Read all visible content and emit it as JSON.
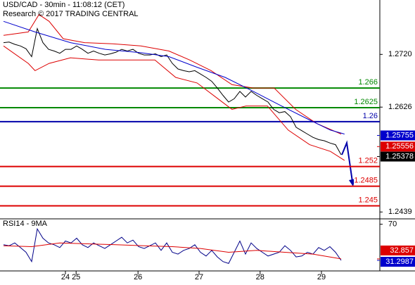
{
  "chart_data": [
    {
      "type": "line",
      "title": "USD/CAD - 30min - 11:08:12 (CET)",
      "subtitle": "Research © 2017 TRADING CENTRAL",
      "xlim": [
        -0.625,
        66.875
      ],
      "ylim": [
        1.2428,
        1.2817
      ],
      "yticks": [
        1.2439,
        1.2626,
        {
          "value": 1.272,
          "label": "1.2720"
        }
      ],
      "series": [
        {
          "color": "#000000",
          "x": [
            0,
            1,
            2,
            3,
            4,
            5,
            6,
            7,
            8,
            9,
            10,
            11,
            12,
            13,
            14,
            15,
            16,
            17,
            18,
            19,
            20,
            21,
            22,
            23,
            24,
            25,
            26,
            27,
            28,
            29,
            30,
            31,
            32,
            33,
            34,
            35,
            36,
            37,
            38,
            39,
            40,
            41,
            42,
            43,
            44,
            45,
            46,
            47,
            48,
            49,
            50,
            51,
            52,
            53,
            54,
            55,
            56,
            57,
            58,
            59,
            60
          ],
          "values": [
            1.2741,
            1.2742,
            1.2738,
            1.2735,
            1.273,
            1.2716,
            1.2766,
            1.2741,
            1.2729,
            1.2726,
            1.2722,
            1.2729,
            1.2729,
            1.2735,
            1.2729,
            1.2722,
            1.2726,
            1.2722,
            1.2719,
            1.2721,
            1.2724,
            1.2729,
            1.2726,
            1.2729,
            1.2722,
            1.2719,
            1.2719,
            1.2721,
            1.2716,
            1.2719,
            1.2704,
            1.2694,
            1.2691,
            1.2689,
            1.2691,
            1.2685,
            1.2679,
            1.2672,
            1.266,
            1.2647,
            1.2635,
            1.2641,
            1.2654,
            1.2644,
            1.2654,
            1.2647,
            1.2641,
            1.2635,
            1.2622,
            1.2616,
            1.2618,
            1.2609,
            1.259,
            1.2584,
            1.2578,
            1.2572,
            1.2568,
            1.2566,
            1.2562,
            1.2559,
            1.2541
          ]
        },
        {
          "color": "#dd0000",
          "x": [
            0,
            4.4,
            6.3,
            8.1,
            10.6,
            14.4,
            19.4,
            24.4,
            29.4,
            33.1,
            36.9,
            40.6,
            44.4,
            48.1,
            51.9,
            55.6,
            60
          ],
          "values": [
            1.2754,
            1.276,
            1.2791,
            1.2779,
            1.2748,
            1.2741,
            1.2739,
            1.2735,
            1.2726,
            1.271,
            1.2691,
            1.2666,
            1.266,
            1.266,
            1.2622,
            1.2597,
            1.2578
          ]
        },
        {
          "color": "#dd0000",
          "x": [
            0,
            4.4,
            5.6,
            8.1,
            11.9,
            16.9,
            21.9,
            26.9,
            30.6,
            34.4,
            38.1,
            40.6,
            43.1,
            46.9,
            50.6,
            54.4,
            58.1,
            60.6
          ],
          "values": [
            1.2735,
            1.2704,
            1.2691,
            1.2704,
            1.2714,
            1.271,
            1.271,
            1.271,
            1.2679,
            1.2669,
            1.2641,
            1.2622,
            1.2628,
            1.2628,
            1.2585,
            1.2559,
            1.2547,
            1.2531
          ]
        },
        {
          "color": "#0000cc",
          "x": [
            0,
            5.6,
            11.9,
            18.1,
            24.4,
            29.4,
            34.4,
            39.4,
            44.4,
            49.4,
            54.4,
            58.1,
            60.6
          ],
          "values": [
            1.2779,
            1.276,
            1.2741,
            1.2729,
            1.2723,
            1.2716,
            1.2697,
            1.2679,
            1.2654,
            1.2628,
            1.2603,
            1.2585,
            1.2578
          ]
        }
      ],
      "levels": [
        {
          "value": 1.266,
          "color": "#008800"
        },
        {
          "value": 1.2625,
          "color": "#008800"
        },
        {
          "value": 1.26,
          "color": "#0000aa"
        },
        {
          "value": 1.252,
          "color": "#dd0000"
        },
        {
          "value": 1.2485,
          "color": "#dd0000"
        },
        {
          "value": 1.245,
          "color": "#dd0000"
        }
      ],
      "markers": [
        {
          "value": 1.25755,
          "color": "#0000cc"
        },
        {
          "value": 1.25556,
          "color": "#dd0000"
        },
        {
          "value": 1.25378,
          "color": "#000000"
        }
      ]
    },
    {
      "type": "line",
      "title": "RSI14 - 9MA",
      "xlim": [
        -0.625,
        66.875
      ],
      "ylim": [
        20,
        75
      ],
      "yticks": [
        70
      ],
      "xticks": [
        {
          "value": 11,
          "label": "24"
        },
        {
          "value": 12.9,
          "label": "25"
        },
        {
          "value": 23.9,
          "label": "26"
        },
        {
          "value": 34.75,
          "label": "27"
        },
        {
          "value": 45.6,
          "label": "28"
        },
        {
          "value": 56.5,
          "label": "29"
        }
      ],
      "series": [
        {
          "color": "#000088",
          "x": [
            0,
            1,
            2,
            3,
            4,
            5,
            6,
            7,
            8,
            9,
            10,
            11,
            12,
            13,
            14,
            15,
            16,
            17,
            18,
            19,
            20,
            21,
            22,
            23,
            24,
            25,
            26,
            27,
            28,
            29,
            30,
            31,
            32,
            33,
            34,
            35,
            36,
            37,
            38,
            39,
            40,
            41,
            42,
            43,
            44,
            45,
            46,
            47,
            48,
            49,
            50,
            51,
            52,
            53,
            54,
            55,
            56,
            57,
            58,
            59,
            60
          ],
          "values": [
            48,
            47,
            50,
            45,
            40,
            30,
            65,
            55,
            50,
            48,
            45,
            52,
            50,
            55,
            48,
            45,
            50,
            47,
            44,
            48,
            52,
            56,
            50,
            53,
            46,
            44,
            47,
            50,
            42,
            50,
            40,
            38,
            42,
            44,
            48,
            40,
            36,
            42,
            35,
            30,
            28,
            40,
            52,
            38,
            50,
            44,
            40,
            36,
            38,
            40,
            47,
            42,
            35,
            36,
            40,
            38,
            45,
            42,
            46,
            40,
            31.2987
          ]
        },
        {
          "color": "#dd0000",
          "x": [
            0,
            5,
            10,
            15,
            20,
            25,
            30,
            35,
            40,
            45,
            50,
            55,
            60
          ],
          "values": [
            47,
            46,
            50,
            49,
            48,
            47,
            46,
            44,
            40,
            42,
            40,
            38,
            32.857
          ]
        }
      ],
      "markers": [
        {
          "value": 32.857,
          "color": "#dd0000"
        },
        {
          "value": 31.2987,
          "color": "#0000cc"
        }
      ]
    }
  ]
}
